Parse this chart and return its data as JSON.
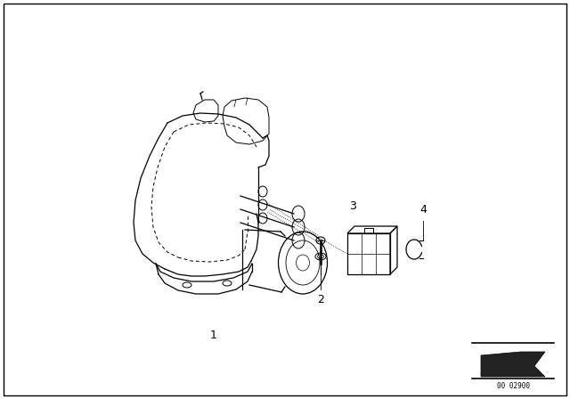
{
  "bg_color": "#ffffff",
  "border_color": "#000000",
  "stamp_text": "00 02900",
  "fig_width": 6.4,
  "fig_height": 4.48,
  "lw": 0.9
}
